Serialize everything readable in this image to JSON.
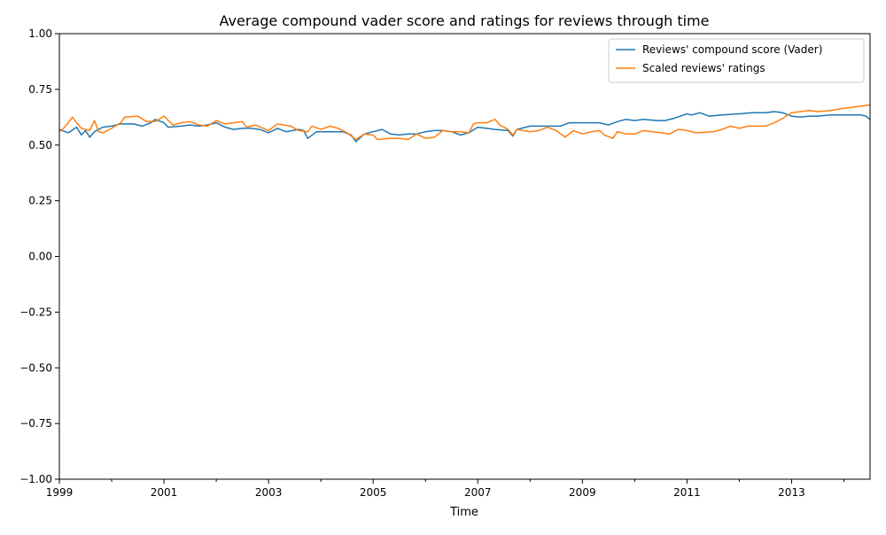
{
  "chart_data": {
    "type": "line",
    "title": "Average compound vader score and ratings for reviews through time",
    "xlabel": "Time",
    "ylabel": "",
    "xlim": [
      1999.0,
      2014.5
    ],
    "ylim": [
      -1.0,
      1.0
    ],
    "x_ticks": [
      1999,
      2001,
      2003,
      2005,
      2007,
      2009,
      2011,
      2013
    ],
    "x_tick_labels": [
      "1999",
      "2001",
      "2003",
      "2005",
      "2007",
      "2009",
      "2011",
      "2013"
    ],
    "x_minor_ticks": [
      2000,
      2002,
      2004,
      2006,
      2008,
      2010,
      2012,
      2014
    ],
    "y_ticks": [
      -1.0,
      -0.75,
      -0.5,
      -0.25,
      0.0,
      0.25,
      0.5,
      0.75,
      1.0
    ],
    "y_tick_labels": [
      "−1.00",
      "−0.75",
      "−0.50",
      "−0.25",
      "0.00",
      "0.25",
      "0.50",
      "0.75",
      "1.00"
    ],
    "grid": false,
    "legend_position": "top-right",
    "series": [
      {
        "name": "Reviews' compound score (Vader)",
        "color": "#1f77b4",
        "points": [
          [
            1999.0,
            0.57
          ],
          [
            1999.17,
            0.555
          ],
          [
            1999.33,
            0.58
          ],
          [
            1999.42,
            0.545
          ],
          [
            1999.5,
            0.565
          ],
          [
            1999.58,
            0.535
          ],
          [
            1999.67,
            0.56
          ],
          [
            1999.83,
            0.58
          ],
          [
            2000.0,
            0.585
          ],
          [
            2000.17,
            0.595
          ],
          [
            2000.42,
            0.595
          ],
          [
            2000.58,
            0.585
          ],
          [
            2000.75,
            0.6
          ],
          [
            2000.83,
            0.615
          ],
          [
            2001.0,
            0.6
          ],
          [
            2001.08,
            0.58
          ],
          [
            2001.33,
            0.585
          ],
          [
            2001.5,
            0.59
          ],
          [
            2001.67,
            0.585
          ],
          [
            2001.83,
            0.59
          ],
          [
            2002.0,
            0.6
          ],
          [
            2002.17,
            0.58
          ],
          [
            2002.33,
            0.57
          ],
          [
            2002.5,
            0.575
          ],
          [
            2002.67,
            0.575
          ],
          [
            2002.83,
            0.57
          ],
          [
            2003.0,
            0.555
          ],
          [
            2003.17,
            0.575
          ],
          [
            2003.33,
            0.56
          ],
          [
            2003.58,
            0.57
          ],
          [
            2003.67,
            0.565
          ],
          [
            2003.75,
            0.53
          ],
          [
            2003.92,
            0.56
          ],
          [
            2004.17,
            0.56
          ],
          [
            2004.42,
            0.56
          ],
          [
            2004.58,
            0.545
          ],
          [
            2004.67,
            0.515
          ],
          [
            2004.83,
            0.55
          ],
          [
            2005.0,
            0.56
          ],
          [
            2005.17,
            0.57
          ],
          [
            2005.33,
            0.55
          ],
          [
            2005.5,
            0.545
          ],
          [
            2005.67,
            0.55
          ],
          [
            2005.83,
            0.55
          ],
          [
            2006.0,
            0.56
          ],
          [
            2006.17,
            0.565
          ],
          [
            2006.33,
            0.565
          ],
          [
            2006.5,
            0.56
          ],
          [
            2006.67,
            0.545
          ],
          [
            2006.83,
            0.555
          ],
          [
            2007.0,
            0.58
          ],
          [
            2007.17,
            0.575
          ],
          [
            2007.33,
            0.57
          ],
          [
            2007.58,
            0.565
          ],
          [
            2007.67,
            0.54
          ],
          [
            2007.75,
            0.57
          ],
          [
            2008.0,
            0.585
          ],
          [
            2008.17,
            0.585
          ],
          [
            2008.33,
            0.585
          ],
          [
            2008.58,
            0.585
          ],
          [
            2008.75,
            0.6
          ],
          [
            2009.0,
            0.6
          ],
          [
            2009.17,
            0.6
          ],
          [
            2009.33,
            0.6
          ],
          [
            2009.5,
            0.59
          ],
          [
            2009.67,
            0.605
          ],
          [
            2009.83,
            0.615
          ],
          [
            2010.0,
            0.61
          ],
          [
            2010.17,
            0.615
          ],
          [
            2010.42,
            0.61
          ],
          [
            2010.58,
            0.61
          ],
          [
            2010.75,
            0.62
          ],
          [
            2011.0,
            0.64
          ],
          [
            2011.08,
            0.635
          ],
          [
            2011.25,
            0.645
          ],
          [
            2011.42,
            0.63
          ],
          [
            2011.67,
            0.635
          ],
          [
            2012.0,
            0.64
          ],
          [
            2012.25,
            0.645
          ],
          [
            2012.5,
            0.645
          ],
          [
            2012.67,
            0.65
          ],
          [
            2012.83,
            0.645
          ],
          [
            2013.0,
            0.63
          ],
          [
            2013.17,
            0.625
          ],
          [
            2013.33,
            0.63
          ],
          [
            2013.5,
            0.63
          ],
          [
            2013.75,
            0.635
          ],
          [
            2014.0,
            0.635
          ],
          [
            2014.33,
            0.635
          ],
          [
            2014.42,
            0.63
          ],
          [
            2014.5,
            0.615
          ]
        ]
      },
      {
        "name": "Scaled reviews' ratings",
        "color": "#ff7f0e",
        "points": [
          [
            1999.0,
            0.56
          ],
          [
            1999.08,
            0.575
          ],
          [
            1999.17,
            0.6
          ],
          [
            1999.25,
            0.625
          ],
          [
            1999.33,
            0.6
          ],
          [
            1999.42,
            0.575
          ],
          [
            1999.58,
            0.565
          ],
          [
            1999.67,
            0.61
          ],
          [
            1999.75,
            0.56
          ],
          [
            1999.83,
            0.555
          ],
          [
            2000.0,
            0.575
          ],
          [
            2000.17,
            0.6
          ],
          [
            2000.25,
            0.625
          ],
          [
            2000.5,
            0.63
          ],
          [
            2000.67,
            0.605
          ],
          [
            2000.83,
            0.605
          ],
          [
            2001.0,
            0.63
          ],
          [
            2001.17,
            0.59
          ],
          [
            2001.33,
            0.6
          ],
          [
            2001.5,
            0.605
          ],
          [
            2001.67,
            0.59
          ],
          [
            2001.83,
            0.585
          ],
          [
            2002.0,
            0.61
          ],
          [
            2002.17,
            0.595
          ],
          [
            2002.33,
            0.6
          ],
          [
            2002.5,
            0.605
          ],
          [
            2002.58,
            0.58
          ],
          [
            2002.75,
            0.59
          ],
          [
            2003.0,
            0.565
          ],
          [
            2003.17,
            0.595
          ],
          [
            2003.42,
            0.585
          ],
          [
            2003.58,
            0.565
          ],
          [
            2003.75,
            0.56
          ],
          [
            2003.83,
            0.585
          ],
          [
            2004.0,
            0.57
          ],
          [
            2004.17,
            0.585
          ],
          [
            2004.33,
            0.575
          ],
          [
            2004.5,
            0.555
          ],
          [
            2004.67,
            0.525
          ],
          [
            2004.83,
            0.55
          ],
          [
            2005.0,
            0.545
          ],
          [
            2005.08,
            0.525
          ],
          [
            2005.33,
            0.53
          ],
          [
            2005.5,
            0.53
          ],
          [
            2005.67,
            0.525
          ],
          [
            2005.83,
            0.55
          ],
          [
            2006.0,
            0.53
          ],
          [
            2006.17,
            0.535
          ],
          [
            2006.33,
            0.565
          ],
          [
            2006.5,
            0.56
          ],
          [
            2006.67,
            0.56
          ],
          [
            2006.83,
            0.555
          ],
          [
            2006.92,
            0.595
          ],
          [
            2007.0,
            0.6
          ],
          [
            2007.17,
            0.6
          ],
          [
            2007.33,
            0.615
          ],
          [
            2007.42,
            0.59
          ],
          [
            2007.58,
            0.57
          ],
          [
            2007.67,
            0.545
          ],
          [
            2007.75,
            0.57
          ],
          [
            2008.0,
            0.56
          ],
          [
            2008.17,
            0.565
          ],
          [
            2008.33,
            0.58
          ],
          [
            2008.5,
            0.565
          ],
          [
            2008.67,
            0.535
          ],
          [
            2008.83,
            0.565
          ],
          [
            2009.0,
            0.55
          ],
          [
            2009.17,
            0.56
          ],
          [
            2009.33,
            0.565
          ],
          [
            2009.42,
            0.545
          ],
          [
            2009.58,
            0.53
          ],
          [
            2009.67,
            0.56
          ],
          [
            2009.83,
            0.55
          ],
          [
            2010.0,
            0.55
          ],
          [
            2010.17,
            0.565
          ],
          [
            2010.33,
            0.56
          ],
          [
            2010.5,
            0.555
          ],
          [
            2010.67,
            0.55
          ],
          [
            2010.83,
            0.57
          ],
          [
            2011.0,
            0.565
          ],
          [
            2011.17,
            0.555
          ],
          [
            2011.5,
            0.56
          ],
          [
            2011.67,
            0.57
          ],
          [
            2011.83,
            0.585
          ],
          [
            2012.0,
            0.575
          ],
          [
            2012.17,
            0.585
          ],
          [
            2012.33,
            0.585
          ],
          [
            2012.5,
            0.585
          ],
          [
            2012.67,
            0.6
          ],
          [
            2012.83,
            0.62
          ],
          [
            2013.0,
            0.645
          ],
          [
            2013.17,
            0.65
          ],
          [
            2013.33,
            0.655
          ],
          [
            2013.5,
            0.65
          ],
          [
            2013.75,
            0.655
          ],
          [
            2014.0,
            0.665
          ],
          [
            2014.17,
            0.67
          ],
          [
            2014.33,
            0.675
          ],
          [
            2014.5,
            0.68
          ]
        ]
      }
    ]
  }
}
